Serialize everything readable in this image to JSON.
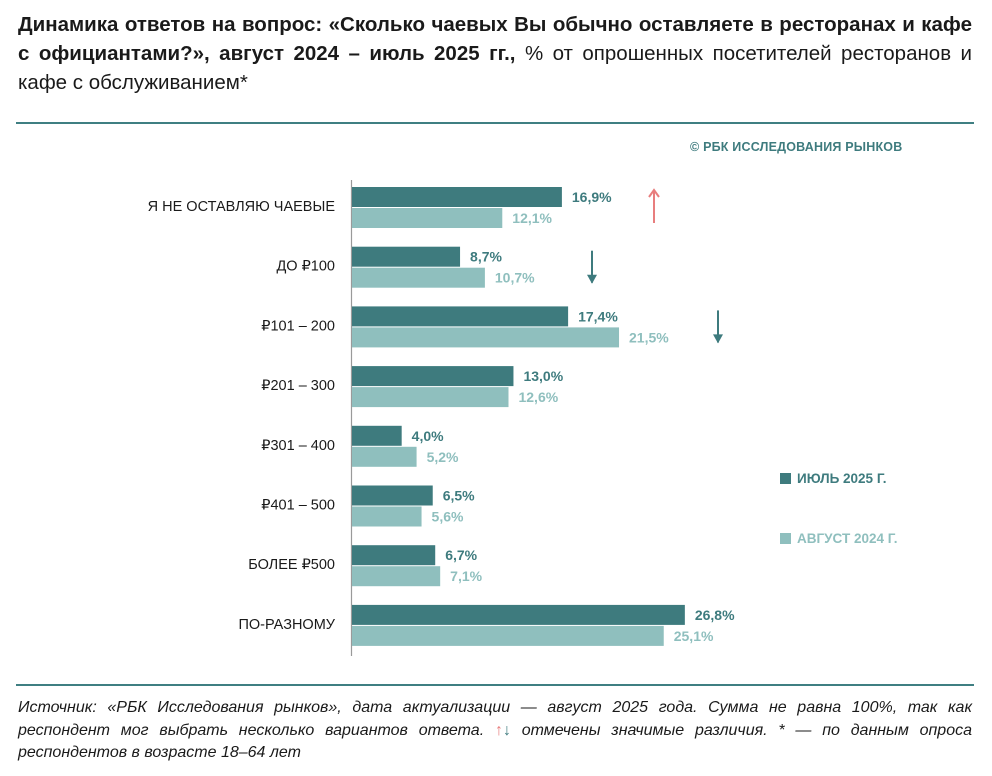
{
  "title": {
    "bold": "Динамика ответов на вопрос: «Сколько чаевых Вы обычно оставляете в ресторанах и кафе с официантами?», август 2024 – июль 2025 гг.,",
    "normal": " % от опрошенных посетителей ресторанов и кафе с обслуживанием*"
  },
  "copyright": "© РБК ИССЛЕДОВАНИЯ РЫНКОВ",
  "chart_data": {
    "type": "bar",
    "orientation": "horizontal",
    "categories": [
      "Я НЕ ОСТАВЛЯЮ ЧАЕВЫЕ",
      "ДО ₽100",
      "₽101 – 200",
      "₽201 – 300",
      "₽301 – 400",
      "₽401 – 500",
      "БОЛЕЕ ₽500",
      "ПО-РАЗНОМУ"
    ],
    "series": [
      {
        "name": "ИЮЛЬ 2025 Г.",
        "values": [
          16.9,
          8.7,
          17.4,
          13.0,
          4.0,
          6.5,
          6.7,
          26.8
        ],
        "labels": [
          "16,9%",
          "8,7%",
          "17,4%",
          "13,0%",
          "4,0%",
          "6,5%",
          "6,7%",
          "26,8%"
        ],
        "color": "#3e7b7e"
      },
      {
        "name": "АВГУСТ 2024 Г.",
        "values": [
          12.1,
          10.7,
          21.5,
          12.6,
          5.2,
          5.6,
          7.1,
          25.1
        ],
        "labels": [
          "12,1%",
          "10,7%",
          "21,5%",
          "12,6%",
          "5,2%",
          "5,6%",
          "7,1%",
          "25,1%"
        ],
        "color": "#8fbfbe"
      }
    ],
    "significance": [
      {
        "category": 0,
        "direction": "up",
        "color": "#e87e7e"
      },
      {
        "category": 1,
        "direction": "down",
        "color": "#3e7b7e"
      },
      {
        "category": 2,
        "direction": "down",
        "color": "#3e7b7e"
      }
    ],
    "xlim": [
      0,
      30
    ],
    "legend_position": "right"
  },
  "legend": {
    "july": "ИЮЛЬ 2025 Г.",
    "august": "АВГУСТ 2024 Г."
  },
  "footnote": {
    "part1": "Источник: «РБК Исследования рынков», дата актуализации — август 2025 года. Сумма не равна 100%, так как респондент мог выбрать несколько вариантов ответа.",
    "up_arrow": "↑",
    "down_arrow": "↓",
    "part2": "отмечены значимые различия. * — по данным опроса респондентов в возрасте 18–64 лет"
  }
}
